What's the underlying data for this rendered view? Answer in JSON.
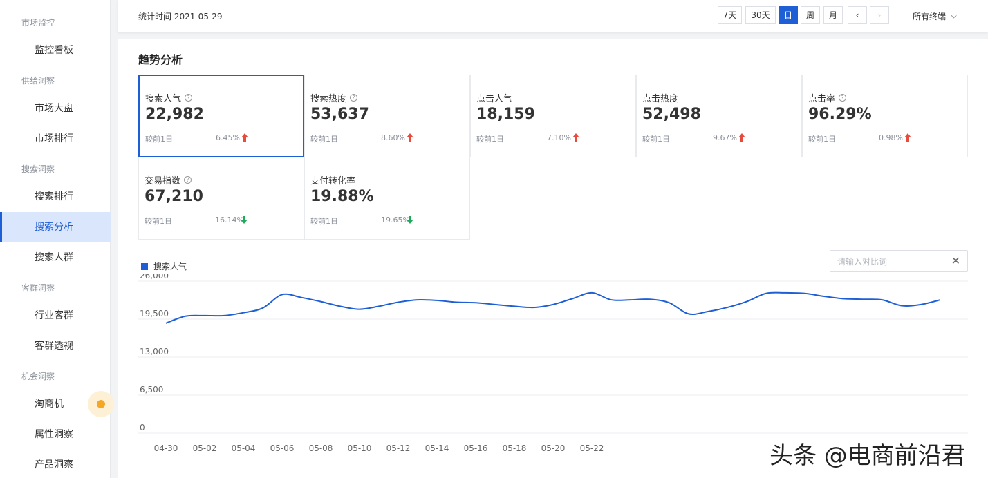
{
  "sidebar": {
    "groups": [
      {
        "label": "市场监控",
        "items": [
          "监控看板"
        ]
      },
      {
        "label": "供给洞察",
        "items": [
          "市场大盘",
          "市场排行"
        ]
      },
      {
        "label": "搜索洞察",
        "items": [
          "搜索排行",
          "搜索分析",
          "搜索人群"
        ]
      },
      {
        "label": "客群洞察",
        "items": [
          "行业客群",
          "客群透视"
        ]
      },
      {
        "label": "机会洞察",
        "items": [
          "淘商机",
          "属性洞察",
          "产品洞察"
        ]
      }
    ],
    "active_item": "搜索分析"
  },
  "topbar": {
    "stat_time": "统计时间 2021-05-29",
    "buttons": [
      "7天",
      "30天",
      "日",
      "周",
      "月"
    ],
    "active_button": "日",
    "prev_icon": "chevron-left-icon",
    "next_icon": "chevron-right-icon",
    "terminal_label": "所有终端"
  },
  "panel": {
    "title": "趋势分析",
    "compare_label": "较前1日",
    "metrics": [
      {
        "name": "搜索人气",
        "help": true,
        "value": "22,982",
        "pct": "6.45%",
        "trend": "up"
      },
      {
        "name": "搜索热度",
        "help": true,
        "value": "53,637",
        "pct": "8.60%",
        "trend": "up"
      },
      {
        "name": "点击人气",
        "help": false,
        "value": "18,159",
        "pct": "7.10%",
        "trend": "up"
      },
      {
        "name": "点击热度",
        "help": false,
        "value": "52,498",
        "pct": "9.67%",
        "trend": "up"
      },
      {
        "name": "点击率",
        "help": true,
        "value": "96.29%",
        "pct": "0.98%",
        "trend": "up"
      },
      {
        "name": "交易指数",
        "help": true,
        "value": "67,210",
        "pct": "16.14%",
        "trend": "down"
      },
      {
        "name": "支付转化率",
        "help": false,
        "value": "19.88%",
        "pct": "19.65%",
        "trend": "down"
      }
    ],
    "compare_input": {
      "placeholder": "请输入对比词",
      "value": ""
    },
    "colors": {
      "accent": "#1f5fd6",
      "up": "#e84a3c",
      "down": "#1faa5b"
    }
  },
  "chart_data": {
    "type": "line",
    "series": [
      {
        "name": "搜索人气",
        "values": [
          18800,
          20000,
          20100,
          20100,
          20600,
          21400,
          23700,
          23200,
          22500,
          21700,
          21200,
          21700,
          22400,
          22800,
          22700,
          22400,
          22300,
          22000,
          21700,
          21500,
          22000,
          23000,
          24000,
          22800,
          22800,
          22900,
          22300,
          20400,
          20800,
          21500,
          22500,
          23900,
          24000,
          23900,
          23400,
          23000,
          22900,
          22800,
          21800,
          22000,
          22800
        ]
      }
    ],
    "x_labels": [
      "04-30",
      "05-02",
      "05-04",
      "05-06",
      "05-08",
      "05-10",
      "05-12",
      "05-14",
      "05-16",
      "05-18",
      "05-20",
      "05-22"
    ],
    "yticks": [
      "0",
      "6,500",
      "13,000",
      "19,500",
      "26,000"
    ],
    "ylim": [
      0,
      26000
    ],
    "grid": true,
    "legend": "top-left"
  },
  "watermark": "头条 @电商前沿君"
}
